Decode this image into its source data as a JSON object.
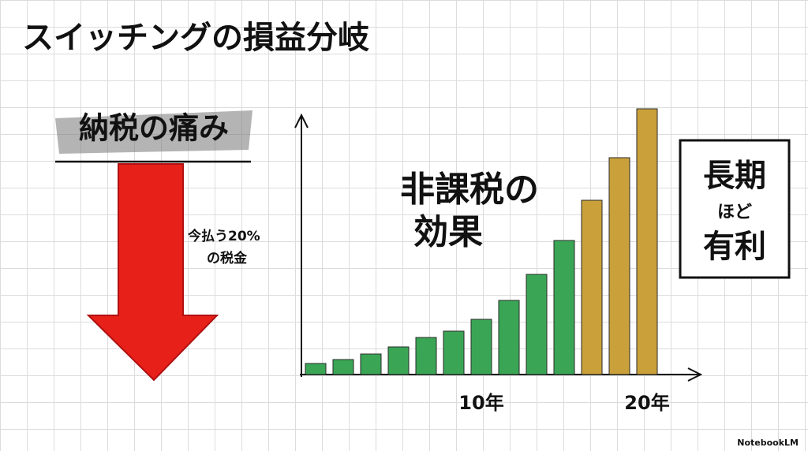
{
  "title": "スイッチングの損益分岐",
  "left_panel": {
    "heading": "納税の痛み",
    "note_lines": [
      "今払う20%",
      "の税金"
    ]
  },
  "chart_data": {
    "type": "bar",
    "categories": [
      null,
      null,
      null,
      null,
      null,
      null,
      "10年",
      null,
      null,
      null,
      null,
      null,
      "20年"
    ],
    "values": [
      14,
      19,
      26,
      35,
      47,
      55,
      70,
      94,
      127,
      170,
      221,
      275,
      337
    ],
    "colors": [
      "#3aa655",
      "#3aa655",
      "#3aa655",
      "#3aa655",
      "#3aa655",
      "#3aa655",
      "#3aa655",
      "#3aa655",
      "#3aa655",
      "#3aa655",
      "#c9a03a",
      "#c9a03a",
      "#c9a03a"
    ],
    "ylim": [
      0,
      350
    ],
    "annotation_lines": [
      "非課税の",
      "効果"
    ]
  },
  "callout_lines": [
    "長期",
    "ほど",
    "有利"
  ],
  "brand": "NotebookLM"
}
